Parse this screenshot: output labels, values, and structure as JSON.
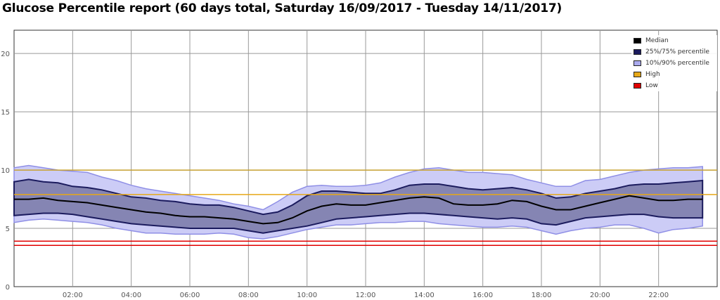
{
  "title": "Glucose Percentile report (60 days total, Saturday 16/09/2017 - Tuesday 14/11/2017)",
  "chart_data": {
    "type": "area",
    "x_ticks": [
      "02:00",
      "04:00",
      "06:00",
      "08:00",
      "10:00",
      "12:00",
      "14:00",
      "16:00",
      "18:00",
      "20:00",
      "22:00"
    ],
    "y_ticks": [
      "0",
      "5",
      "10",
      "15",
      "20"
    ],
    "xlim": [
      0,
      24
    ],
    "ylim": [
      0,
      22
    ],
    "grid": true,
    "legend_placement": "top-right",
    "thresholds": [
      {
        "name": "High",
        "value": 7.9,
        "color": "#e6a817"
      },
      {
        "name": "Low",
        "value": 3.9,
        "color": "#e00000"
      }
    ],
    "upper_line": {
      "value": 10.0,
      "color": "#c8a232"
    },
    "x": [
      0,
      0.5,
      1,
      1.5,
      2,
      2.5,
      3,
      3.5,
      4,
      4.5,
      5,
      5.5,
      6,
      6.5,
      7,
      7.5,
      8,
      8.5,
      9,
      9.5,
      10,
      10.5,
      11,
      11.5,
      12,
      12.5,
      13,
      13.5,
      14,
      14.5,
      15,
      15.5,
      16,
      16.5,
      17,
      17.5,
      18,
      18.5,
      19,
      19.5,
      20,
      20.5,
      21,
      21.5,
      22,
      22.5,
      23,
      23.5
    ],
    "series": [
      {
        "name": "Median",
        "color": "#000000",
        "values": [
          7.5,
          7.5,
          7.6,
          7.4,
          7.3,
          7.2,
          7.0,
          6.8,
          6.6,
          6.4,
          6.3,
          6.1,
          6.0,
          6.0,
          5.9,
          5.8,
          5.6,
          5.4,
          5.5,
          5.9,
          6.5,
          6.9,
          7.1,
          7.0,
          7.0,
          7.2,
          7.4,
          7.6,
          7.7,
          7.6,
          7.1,
          7.0,
          7.0,
          7.1,
          7.4,
          7.3,
          6.9,
          6.6,
          6.6,
          6.9,
          7.2,
          7.5,
          7.8,
          7.6,
          7.4,
          7.4,
          7.5,
          7.5
        ],
        "role": "line"
      },
      {
        "name": "25%/75% percentile",
        "color": "#1b1b5e",
        "lower": [
          6.1,
          6.2,
          6.3,
          6.3,
          6.2,
          6.0,
          5.8,
          5.6,
          5.4,
          5.3,
          5.2,
          5.1,
          5.0,
          5.0,
          5.0,
          5.0,
          4.8,
          4.6,
          4.8,
          5.0,
          5.2,
          5.5,
          5.8,
          5.9,
          6.0,
          6.1,
          6.2,
          6.3,
          6.3,
          6.2,
          6.1,
          6.0,
          5.9,
          5.8,
          5.9,
          5.8,
          5.4,
          5.3,
          5.6,
          5.9,
          6.0,
          6.1,
          6.2,
          6.2,
          6.0,
          5.9,
          5.9,
          5.9
        ],
        "upper": [
          9.0,
          9.2,
          9.0,
          8.9,
          8.6,
          8.5,
          8.3,
          8.0,
          7.7,
          7.6,
          7.4,
          7.3,
          7.1,
          7.0,
          7.0,
          6.8,
          6.5,
          6.2,
          6.4,
          7.0,
          7.8,
          8.2,
          8.2,
          8.1,
          8.0,
          8.0,
          8.3,
          8.7,
          8.8,
          8.8,
          8.6,
          8.4,
          8.3,
          8.4,
          8.5,
          8.3,
          8.0,
          7.6,
          7.7,
          8.0,
          8.2,
          8.4,
          8.7,
          8.8,
          8.8,
          8.9,
          9.0,
          9.1
        ],
        "role": "band"
      },
      {
        "name": "10%/90% percentile",
        "color": "#aaaaee",
        "lower": [
          5.5,
          5.7,
          5.8,
          5.7,
          5.6,
          5.5,
          5.3,
          5.0,
          4.8,
          4.6,
          4.6,
          4.5,
          4.5,
          4.5,
          4.6,
          4.5,
          4.2,
          4.1,
          4.3,
          4.6,
          4.9,
          5.1,
          5.3,
          5.3,
          5.4,
          5.5,
          5.5,
          5.6,
          5.6,
          5.4,
          5.3,
          5.2,
          5.1,
          5.1,
          5.2,
          5.1,
          4.8,
          4.5,
          4.8,
          5.0,
          5.1,
          5.3,
          5.3,
          5.0,
          4.6,
          4.9,
          5.0,
          5.2
        ],
        "upper": [
          10.2,
          10.4,
          10.2,
          10.0,
          9.9,
          9.8,
          9.4,
          9.1,
          8.7,
          8.4,
          8.2,
          8.0,
          7.8,
          7.6,
          7.4,
          7.1,
          6.9,
          6.6,
          7.3,
          8.1,
          8.6,
          8.7,
          8.6,
          8.6,
          8.7,
          8.9,
          9.4,
          9.8,
          10.1,
          10.2,
          10.0,
          9.8,
          9.8,
          9.7,
          9.6,
          9.2,
          8.9,
          8.6,
          8.6,
          9.1,
          9.2,
          9.5,
          9.8,
          10.0,
          10.1,
          10.2,
          10.2,
          10.3
        ],
        "role": "band"
      }
    ],
    "legend": [
      {
        "label": "Median",
        "color": "#000000"
      },
      {
        "label": "25%/75% percentile",
        "color": "#1b1b5e"
      },
      {
        "label": "10%/90% percentile",
        "color": "#aaaaee"
      },
      {
        "label": "High",
        "color": "#e6a817"
      },
      {
        "label": "Low",
        "color": "#e00000"
      }
    ]
  }
}
